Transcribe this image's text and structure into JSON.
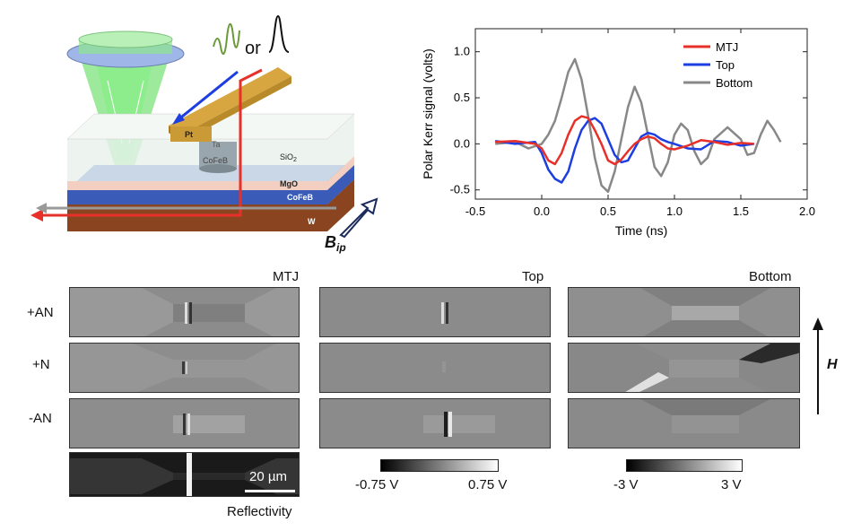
{
  "schematic": {
    "or_text": "or",
    "layers": {
      "pt": "Pt",
      "ta": "Ta",
      "cofeb_pillar": "CoFeB",
      "sio2": "SiO",
      "sio2_sub": "2",
      "mgo": "MgO",
      "cofeb": "CoFeB",
      "w": "W"
    },
    "field_label": "B",
    "field_sub": "ip"
  },
  "chart_data": {
    "type": "line",
    "xlabel": "Time (ns)",
    "ylabel": "Polar Kerr signal (volts)",
    "xlim": [
      -0.5,
      2.0
    ],
    "ylim": [
      -0.6,
      1.25
    ],
    "xticks": [
      -0.5,
      0.0,
      0.5,
      1.0,
      1.5,
      2.0
    ],
    "xtick_labels": [
      "-0.5",
      "0.0",
      "0.5",
      "1.0",
      "1.5",
      "2.0"
    ],
    "yticks": [
      -0.5,
      0.0,
      0.5,
      1.0
    ],
    "ytick_labels": [
      "-0.5",
      "0.0",
      "0.5",
      "1.0"
    ],
    "legend_position": "top-right",
    "series": [
      {
        "name": "MTJ",
        "color": "#e8302a",
        "x": [
          -0.35,
          -0.2,
          -0.05,
          0.0,
          0.05,
          0.1,
          0.15,
          0.2,
          0.25,
          0.3,
          0.35,
          0.4,
          0.45,
          0.5,
          0.55,
          0.6,
          0.65,
          0.7,
          0.75,
          0.8,
          0.85,
          0.9,
          0.95,
          1.0,
          1.1,
          1.2,
          1.3,
          1.4,
          1.5,
          1.6
        ],
        "values": [
          0.02,
          0.03,
          0.0,
          -0.05,
          -0.18,
          -0.22,
          -0.1,
          0.1,
          0.25,
          0.3,
          0.28,
          0.15,
          0.0,
          -0.18,
          -0.22,
          -0.17,
          -0.08,
          0.0,
          0.05,
          0.08,
          0.06,
          0.0,
          -0.05,
          -0.06,
          -0.02,
          0.04,
          0.02,
          -0.01,
          0.01,
          0.0
        ]
      },
      {
        "name": "Top",
        "color": "#1d3ee0",
        "x": [
          -0.35,
          -0.2,
          -0.05,
          0.0,
          0.05,
          0.1,
          0.15,
          0.2,
          0.25,
          0.3,
          0.35,
          0.4,
          0.45,
          0.5,
          0.55,
          0.6,
          0.65,
          0.7,
          0.75,
          0.8,
          0.85,
          0.9,
          0.95,
          1.0,
          1.1,
          1.2,
          1.3,
          1.4,
          1.5,
          1.6
        ],
        "values": [
          0.03,
          0.0,
          0.02,
          -0.1,
          -0.28,
          -0.38,
          -0.42,
          -0.3,
          -0.05,
          0.15,
          0.25,
          0.28,
          0.22,
          0.05,
          -0.12,
          -0.2,
          -0.18,
          -0.05,
          0.08,
          0.12,
          0.1,
          0.05,
          0.02,
          0.0,
          -0.05,
          -0.06,
          0.03,
          0.02,
          -0.02,
          0.0
        ]
      },
      {
        "name": "Bottom",
        "color": "#888888",
        "x": [
          -0.35,
          -0.2,
          -0.1,
          0.0,
          0.05,
          0.1,
          0.15,
          0.2,
          0.25,
          0.3,
          0.35,
          0.4,
          0.45,
          0.5,
          0.55,
          0.6,
          0.65,
          0.7,
          0.75,
          0.8,
          0.85,
          0.9,
          0.95,
          1.0,
          1.05,
          1.1,
          1.15,
          1.2,
          1.25,
          1.3,
          1.4,
          1.5,
          1.55,
          1.6,
          1.65,
          1.7,
          1.75,
          1.8
        ],
        "values": [
          0.0,
          0.02,
          -0.05,
          0.0,
          0.1,
          0.25,
          0.5,
          0.78,
          0.92,
          0.7,
          0.3,
          -0.15,
          -0.45,
          -0.52,
          -0.3,
          0.05,
          0.4,
          0.62,
          0.45,
          0.1,
          -0.25,
          -0.35,
          -0.2,
          0.1,
          0.22,
          0.15,
          -0.08,
          -0.22,
          -0.15,
          0.05,
          0.18,
          0.05,
          -0.12,
          -0.1,
          0.1,
          0.25,
          0.15,
          0.02
        ]
      }
    ]
  },
  "images": {
    "columns": [
      "MTJ",
      "Top",
      "Bottom"
    ],
    "rows": [
      "+AN",
      "+N",
      "-AN"
    ],
    "reflectivity_label": "Reflectivity",
    "scalebar_label": "20 µm",
    "field_label": "H",
    "colorbar_mid": {
      "min": "-0.75 V",
      "max": "0.75 V"
    },
    "colorbar_right": {
      "min": "-3 V",
      "max": "3 V"
    }
  }
}
